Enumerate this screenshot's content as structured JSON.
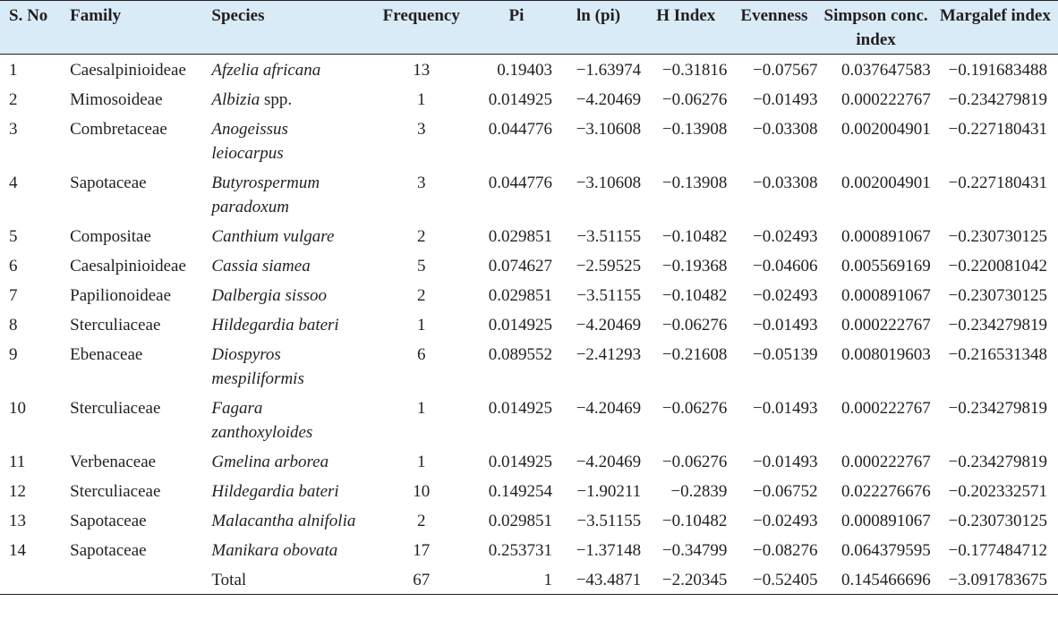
{
  "headers": {
    "sno": "S. No",
    "family": "Family",
    "species": "Species",
    "frequency": "Frequency",
    "pi": "Pi",
    "ln_pi": "ln (pi)",
    "h_index": "H Index",
    "evenness": "Evenness",
    "simpson": "Simpson conc. index",
    "margalef": "Margalef index"
  },
  "rows": [
    {
      "sno": "1",
      "family": "Caesalpinioideae",
      "species": "Afzelia africana",
      "species_suffix": "",
      "frequency": "13",
      "pi": "0.19403",
      "ln_pi": "−1.63974",
      "h_index": "−0.31816",
      "evenness": "−0.07567",
      "simpson": "0.037647583",
      "margalef": "−0.191683488"
    },
    {
      "sno": "2",
      "family": "Mimosoideae",
      "species": "Albizia",
      "species_suffix": " spp.",
      "frequency": "1",
      "pi": "0.014925",
      "ln_pi": "−4.20469",
      "h_index": "−0.06276",
      "evenness": "−0.01493",
      "simpson": "0.000222767",
      "margalef": "−0.234279819"
    },
    {
      "sno": "3",
      "family": "Combretaceae",
      "species": "Anogeissus leiocarpus",
      "species_suffix": "",
      "frequency": "3",
      "pi": "0.044776",
      "ln_pi": "−3.10608",
      "h_index": "−0.13908",
      "evenness": "−0.03308",
      "simpson": "0.002004901",
      "margalef": "−0.227180431"
    },
    {
      "sno": "4",
      "family": "Sapotaceae",
      "species": "Butyrospermum paradoxum",
      "species_suffix": "",
      "frequency": "3",
      "pi": "0.044776",
      "ln_pi": "−3.10608",
      "h_index": "−0.13908",
      "evenness": "−0.03308",
      "simpson": "0.002004901",
      "margalef": "−0.227180431"
    },
    {
      "sno": "5",
      "family": "Compositae",
      "species": "Canthium vulgare",
      "species_suffix": "",
      "frequency": "2",
      "pi": "0.029851",
      "ln_pi": "−3.51155",
      "h_index": "−0.10482",
      "evenness": "−0.02493",
      "simpson": "0.000891067",
      "margalef": "−0.230730125"
    },
    {
      "sno": "6",
      "family": "Caesalpinioideae",
      "species": "Cassia siamea",
      "species_suffix": "",
      "frequency": "5",
      "pi": "0.074627",
      "ln_pi": "−2.59525",
      "h_index": "−0.19368",
      "evenness": "−0.04606",
      "simpson": "0.005569169",
      "margalef": "−0.220081042"
    },
    {
      "sno": "7",
      "family": "Papilionoideae",
      "species": "Dalbergia sissoo",
      "species_suffix": "",
      "frequency": "2",
      "pi": "0.029851",
      "ln_pi": "−3.51155",
      "h_index": "−0.10482",
      "evenness": "−0.02493",
      "simpson": "0.000891067",
      "margalef": "−0.230730125"
    },
    {
      "sno": "8",
      "family": "Sterculiaceae",
      "species": "Hildegardia bateri",
      "species_suffix": "",
      "frequency": "1",
      "pi": "0.014925",
      "ln_pi": "−4.20469",
      "h_index": "−0.06276",
      "evenness": "−0.01493",
      "simpson": "0.000222767",
      "margalef": "−0.234279819"
    },
    {
      "sno": "9",
      "family": "Ebenaceae",
      "species": "Diospyros mespiliformis",
      "species_suffix": "",
      "frequency": "6",
      "pi": "0.089552",
      "ln_pi": "−2.41293",
      "h_index": "−0.21608",
      "evenness": "−0.05139",
      "simpson": "0.008019603",
      "margalef": "−0.216531348"
    },
    {
      "sno": "10",
      "family": "Sterculiaceae",
      "species": "Fagara zanthoxyloides",
      "species_suffix": "",
      "frequency": "1",
      "pi": "0.014925",
      "ln_pi": "−4.20469",
      "h_index": "−0.06276",
      "evenness": "−0.01493",
      "simpson": "0.000222767",
      "margalef": "−0.234279819"
    },
    {
      "sno": "11",
      "family": "Verbenaceae",
      "species": "Gmelina arborea",
      "species_suffix": "",
      "frequency": "1",
      "pi": "0.014925",
      "ln_pi": "−4.20469",
      "h_index": "−0.06276",
      "evenness": "−0.01493",
      "simpson": "0.000222767",
      "margalef": "−0.234279819"
    },
    {
      "sno": "12",
      "family": "Sterculiaceae",
      "species": "Hildegardia bateri",
      "species_suffix": "",
      "frequency": "10",
      "pi": "0.149254",
      "ln_pi": "−1.90211",
      "h_index": "−0.2839",
      "evenness": "−0.06752",
      "simpson": "0.022276676",
      "margalef": "−0.202332571"
    },
    {
      "sno": "13",
      "family": "Sapotaceae",
      "species": "Malacantha alnifolia",
      "species_suffix": "",
      "frequency": "2",
      "pi": "0.029851",
      "ln_pi": "−3.51155",
      "h_index": "−0.10482",
      "evenness": "−0.02493",
      "simpson": "0.000891067",
      "margalef": "−0.230730125"
    },
    {
      "sno": "14",
      "family": "Sapotaceae",
      "species": "Manikara obovata",
      "species_suffix": "",
      "frequency": "17",
      "pi": "0.253731",
      "ln_pi": "−1.37148",
      "h_index": "−0.34799",
      "evenness": "−0.08276",
      "simpson": "0.064379595",
      "margalef": "−0.177484712"
    }
  ],
  "total": {
    "label": "Total",
    "frequency": "67",
    "pi": "1",
    "ln_pi": "−43.4871",
    "h_index": "−2.20345",
    "evenness": "−0.52405",
    "simpson": "0.145466696",
    "margalef": "−3.091783675"
  }
}
